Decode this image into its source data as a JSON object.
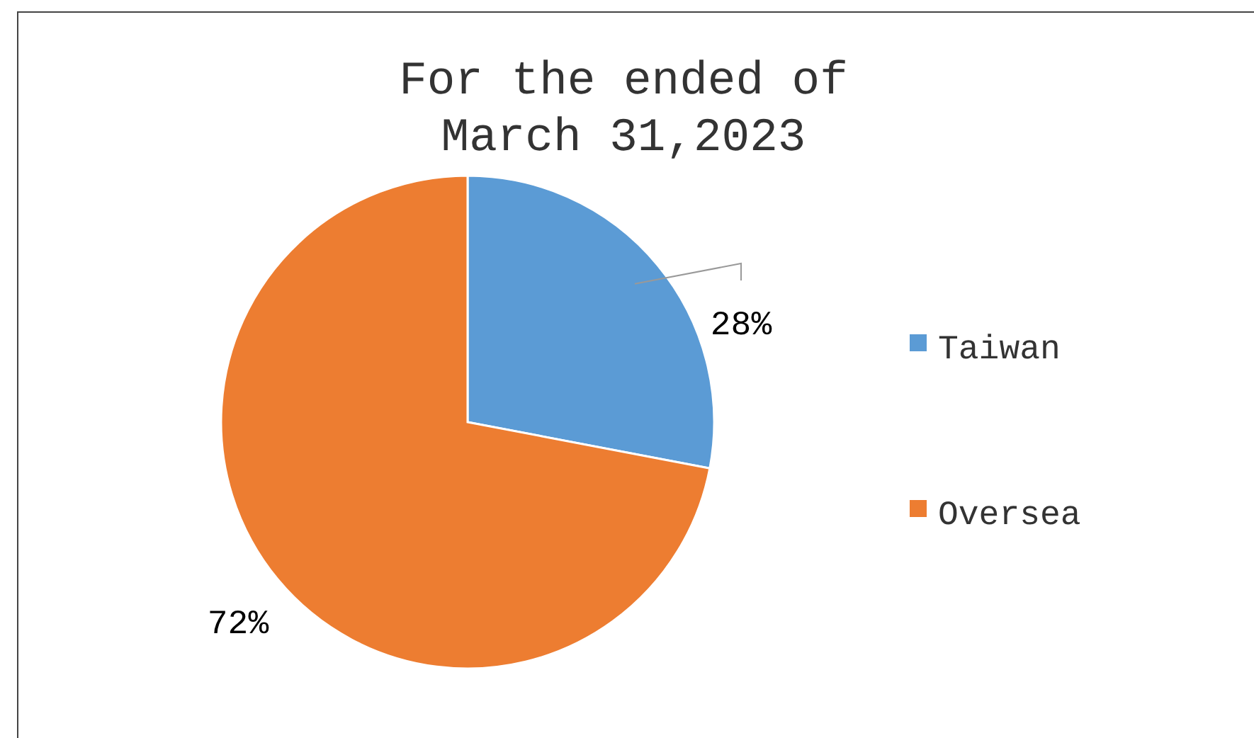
{
  "chart_data": {
    "type": "pie",
    "title": "For the ended of\nMarch 31,2023",
    "categories": [
      "Taiwan",
      "Oversea"
    ],
    "values": [
      28,
      72
    ],
    "colors": [
      "#5b9bd5",
      "#ed7d31"
    ],
    "value_labels": [
      "28%",
      "72%"
    ],
    "legend": "right"
  }
}
